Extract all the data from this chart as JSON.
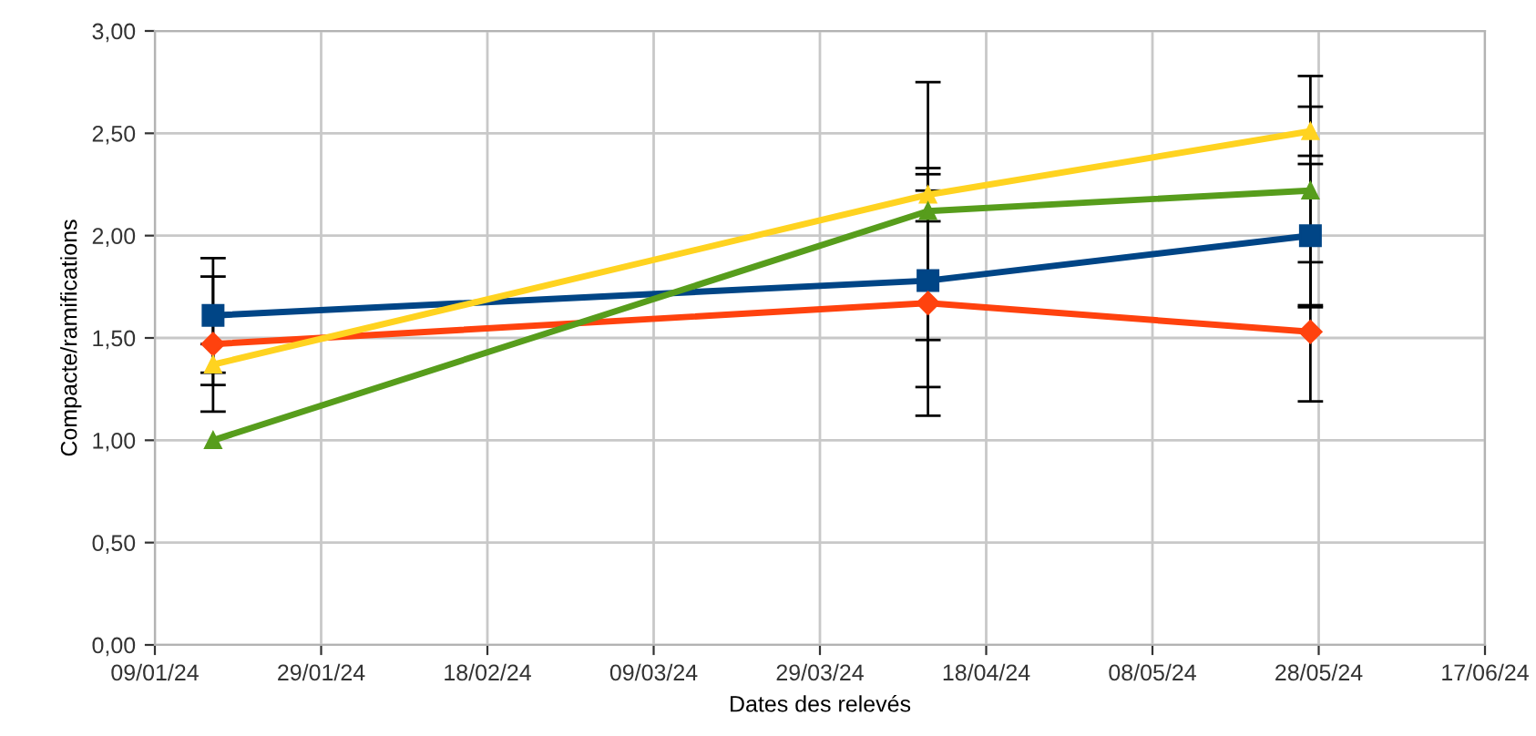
{
  "chart_data": {
    "type": "line",
    "xlabel": "Dates des relevés",
    "ylabel": "Compacte/ramifications",
    "x": [
      "2024-01-16",
      "2024-04-11",
      "2024-05-27"
    ],
    "series": [
      {
        "color": "#004586",
        "marker": "square",
        "values": [
          1.61,
          1.78,
          2.0
        ],
        "errors": [
          0.28,
          0.52,
          0.35
        ]
      },
      {
        "color": "#ff420e",
        "marker": "diamond",
        "values": [
          1.47,
          1.67,
          1.53
        ],
        "errors": [
          0.33,
          0.55,
          0.34
        ]
      },
      {
        "color": "#ffd320",
        "marker": "triangle",
        "values": [
          1.37,
          2.2,
          2.51
        ],
        "errors": [
          0.1,
          0.13,
          0.12
        ]
      },
      {
        "color": "#579d1c",
        "marker": "triangle",
        "values": [
          1.0,
          2.12,
          2.22
        ],
        "errors": [
          null,
          0.63,
          0.56
        ]
      }
    ],
    "xlim": [
      "2024-01-09",
      "2024-06-17"
    ],
    "xticks": [
      {
        "value": "2024-01-09",
        "label": "09/01/24"
      },
      {
        "value": "2024-01-29",
        "label": "29/01/24"
      },
      {
        "value": "2024-02-18",
        "label": "18/02/24"
      },
      {
        "value": "2024-03-09",
        "label": "09/03/24"
      },
      {
        "value": "2024-03-29",
        "label": "29/03/24"
      },
      {
        "value": "2024-04-18",
        "label": "18/04/24"
      },
      {
        "value": "2024-05-08",
        "label": "08/05/24"
      },
      {
        "value": "2024-05-28",
        "label": "28/05/24"
      },
      {
        "value": "2024-06-17",
        "label": "17/06/24"
      }
    ],
    "ylim": [
      0,
      3
    ],
    "yticks": [
      {
        "value": 0,
        "label": "0,00"
      },
      {
        "value": 0.5,
        "label": "0,50"
      },
      {
        "value": 1,
        "label": "1,00"
      },
      {
        "value": 1.5,
        "label": "1,50"
      },
      {
        "value": 2,
        "label": "2,00"
      },
      {
        "value": 2.5,
        "label": "2,50"
      },
      {
        "value": 3,
        "label": "3,00"
      }
    ],
    "grid": true,
    "line_style": "solid"
  }
}
